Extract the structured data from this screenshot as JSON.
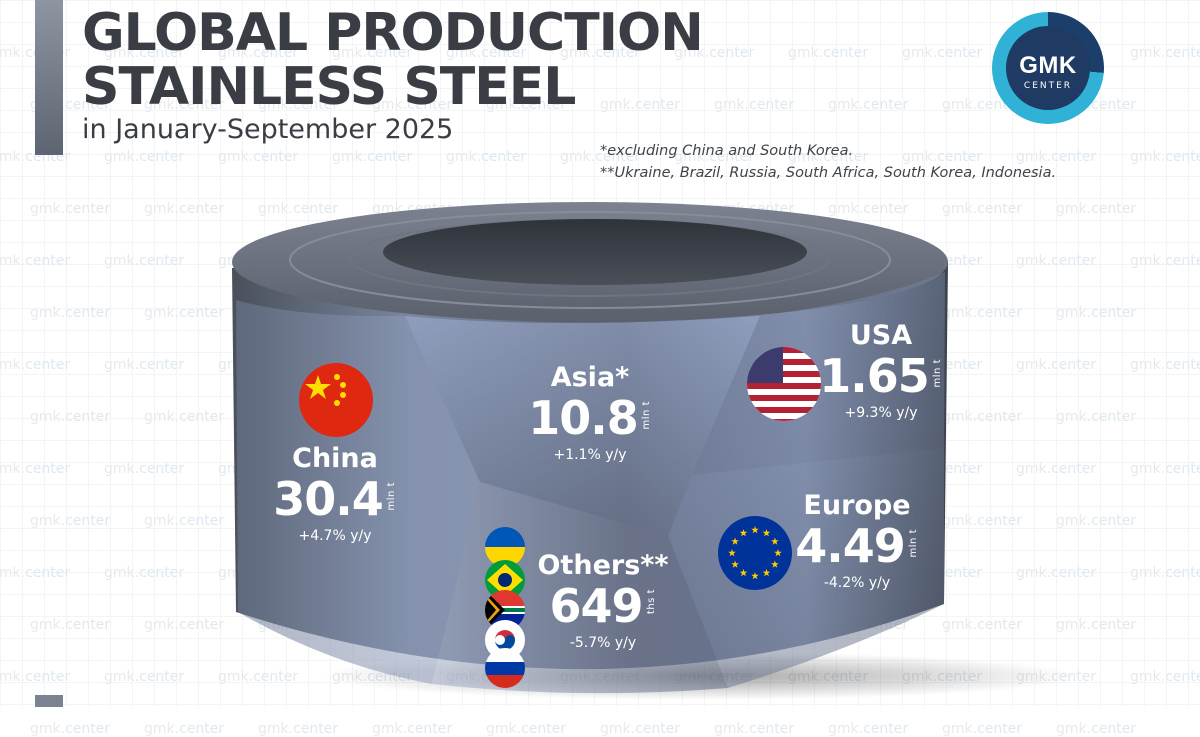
{
  "header": {
    "title_line1": "GLOBAL PRODUCTION",
    "title_line2": "STAINLESS STEEL",
    "subtitle": "in January-September 2025",
    "note1": "*excluding China and South Korea.",
    "note2": "**Ukraine, Brazil, Russia, South Africa, South Korea, Indonesia."
  },
  "logo": {
    "main": "GMK",
    "sub": "CENTER"
  },
  "watermark": {
    "prefix": "gmk.",
    "suffix": "center"
  },
  "colors": {
    "title": "#3a3d44",
    "coil_dark": "#4e5561",
    "coil_light": "#a9b6d2",
    "logo_dark": "#1f3a63",
    "logo_light": "#2fb2d6"
  },
  "chart_data": {
    "type": "table",
    "segments": [
      {
        "name": "China",
        "value": "30.4",
        "unit": "mln t",
        "change": "+4.7% y/y",
        "flags": [
          "china-flag"
        ]
      },
      {
        "name": "Asia*",
        "value": "10.8",
        "unit": "mln t",
        "change": "+1.1% y/y",
        "flags": []
      },
      {
        "name": "USA",
        "value": "1.65",
        "unit": "mln t",
        "change": "+9.3% y/y",
        "flags": [
          "usa-flag"
        ]
      },
      {
        "name": "Europe",
        "value": "4.49",
        "unit": "mln t",
        "change": "-4.2% y/y",
        "flags": [
          "eu-flag"
        ]
      },
      {
        "name": "Others**",
        "value": "649",
        "unit": "ths t",
        "change": "-5.7% y/y",
        "flags": [
          "ukraine-flag",
          "brazil-flag",
          "south-africa-flag",
          "south-korea-flag",
          "russia-flag"
        ]
      }
    ]
  }
}
